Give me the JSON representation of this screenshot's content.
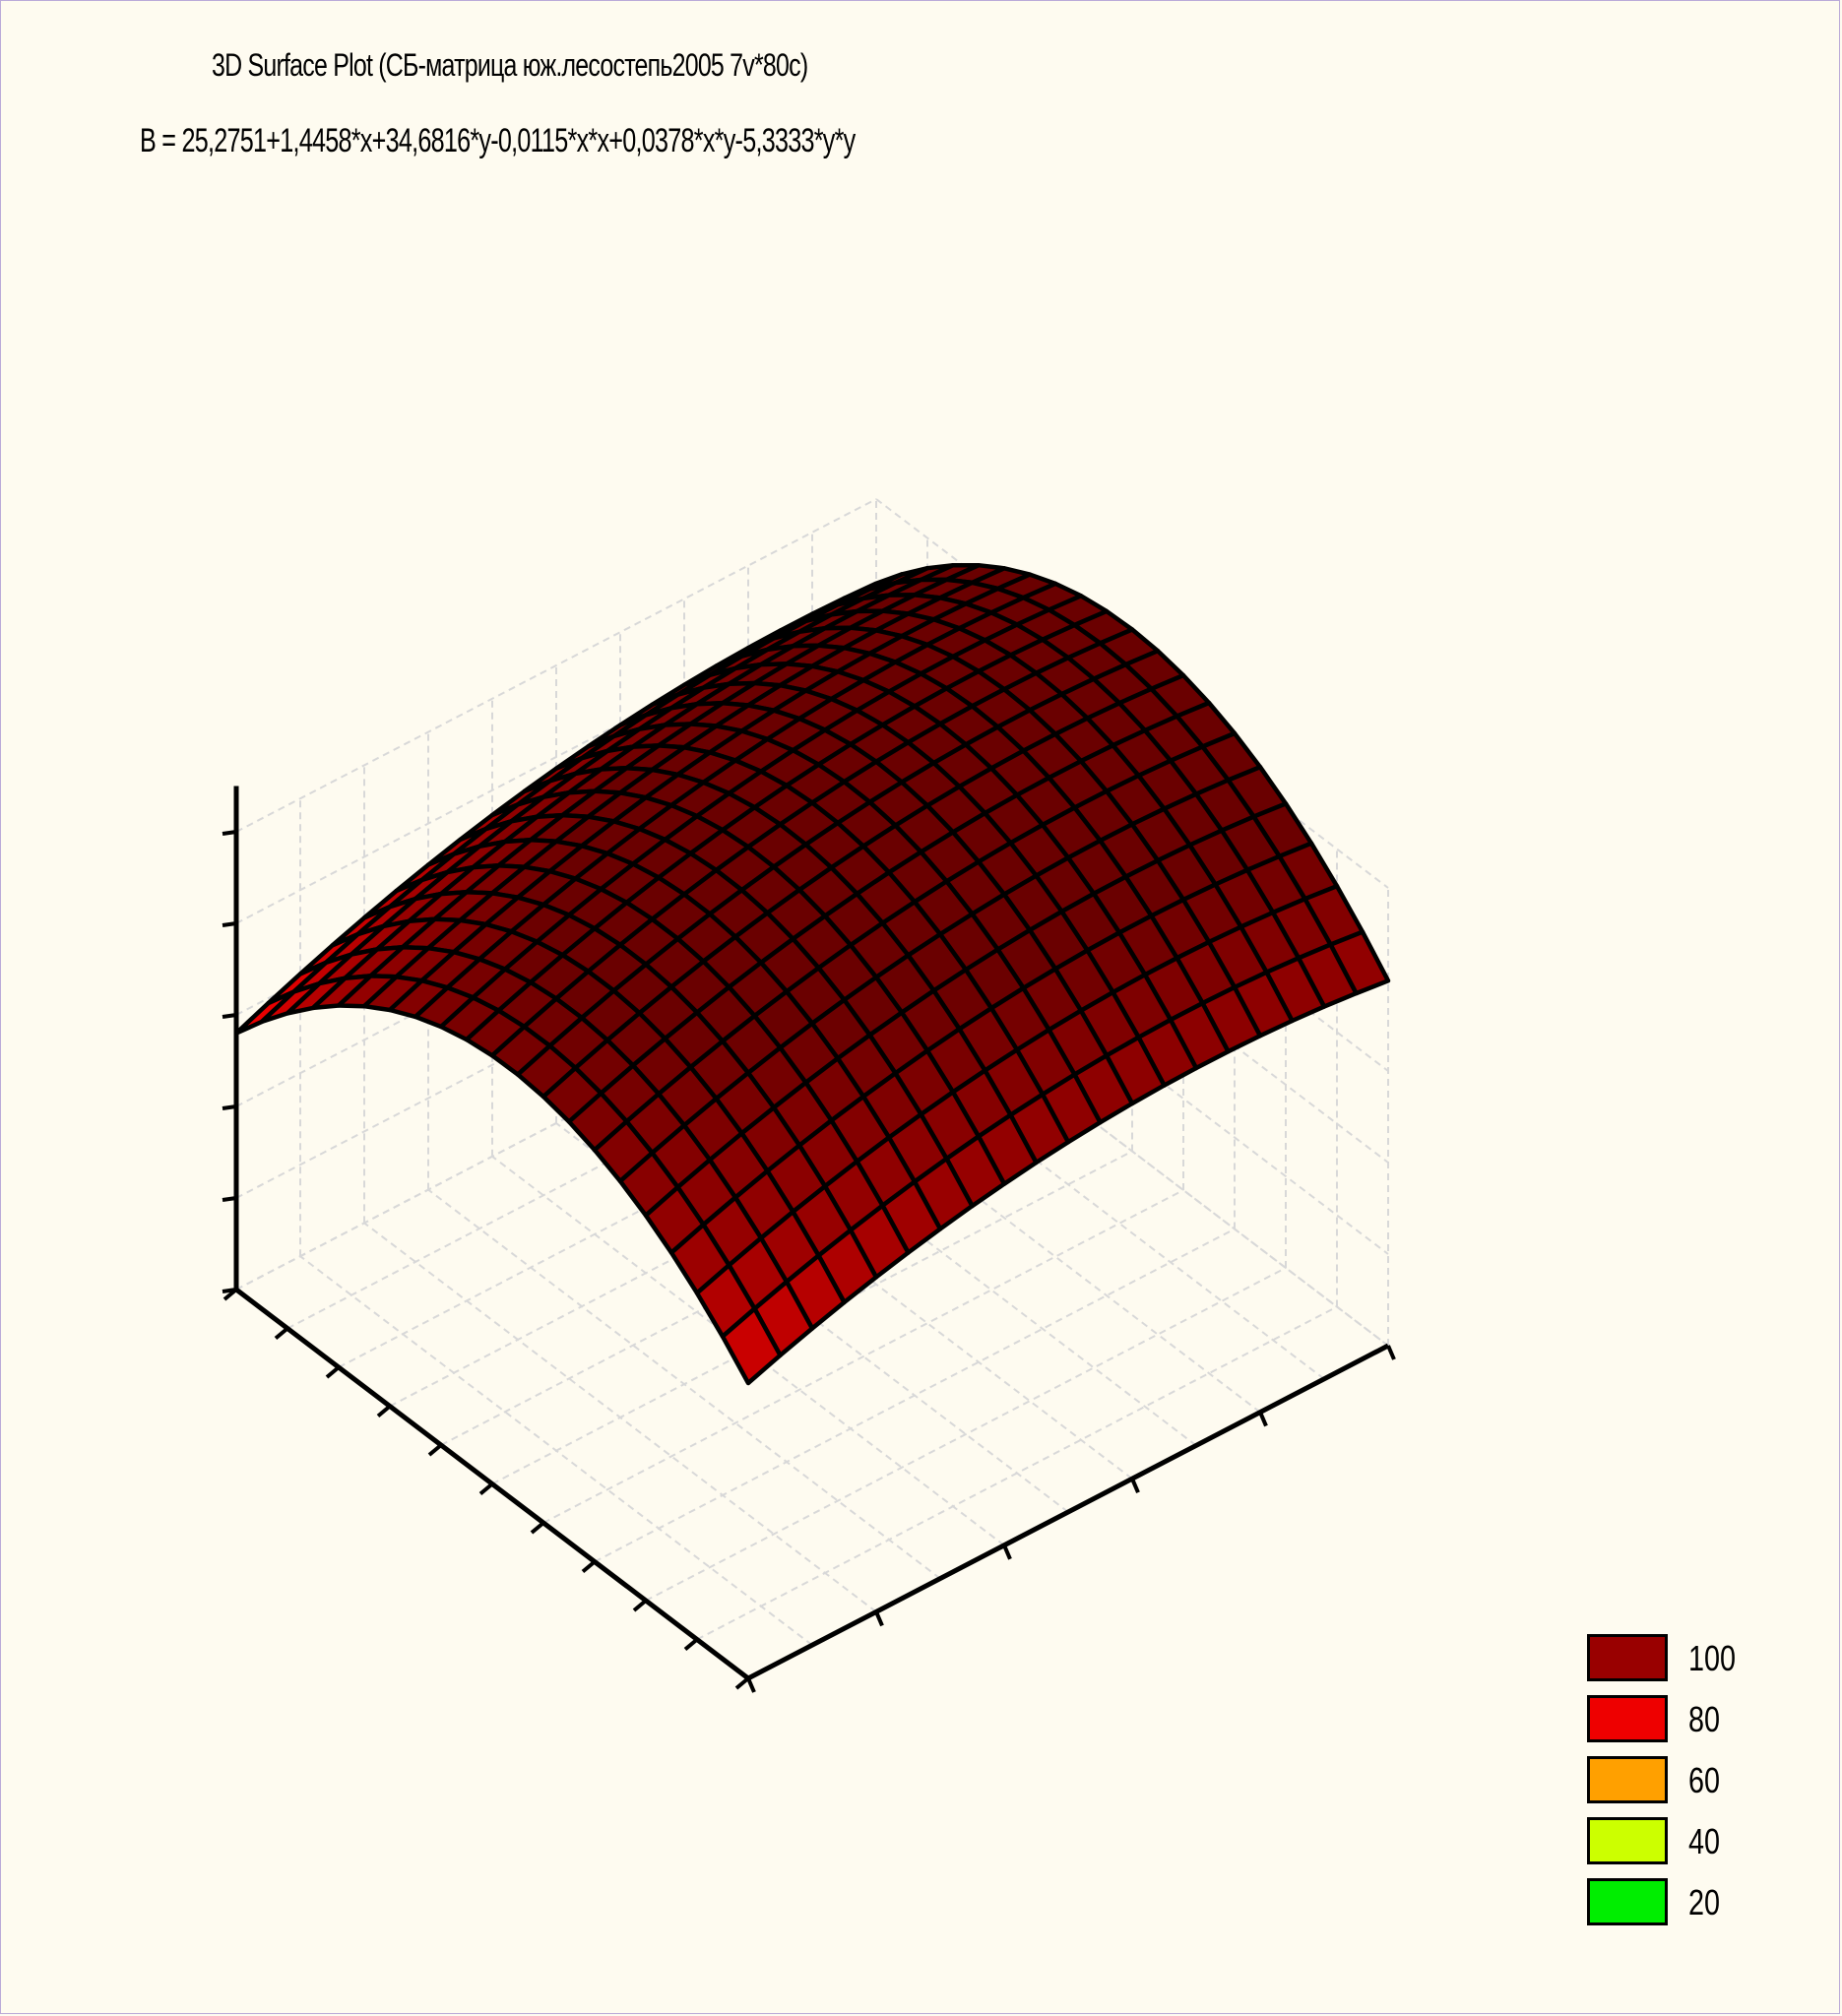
{
  "title": "3D Surface Plot (СБ-матрица юж.лесостепь2005 7v*80c)",
  "equation": "B    = 25,2751+1,4458*x+34,6816*y-0,0115*x*x+0,0378*x*y-5,3333*y*y",
  "chart_data": {
    "type": "surface3d",
    "formula": {
      "const": 25.2751,
      "x": 1.4458,
      "y": 34.6816,
      "xx": -0.0115,
      "xy": 0.0378,
      "yy": -5.3333
    },
    "x_range": [
      25,
      80
    ],
    "y_range": [
      1,
      6
    ],
    "grid": {
      "nx": 21,
      "ny": 21
    },
    "legend": {
      "placement": "bottom-right",
      "items": [
        {
          "label": "100",
          "color": "#990000"
        },
        {
          "label": "80",
          "color": "#ee0000"
        },
        {
          "label": "60",
          "color": "#ffa000"
        },
        {
          "label": "40",
          "color": "#ccff00"
        },
        {
          "label": "20",
          "color": "#00ee00"
        }
      ]
    },
    "palette": [
      {
        "v": 10,
        "color": "#00c000"
      },
      {
        "v": 20,
        "color": "#00ee00"
      },
      {
        "v": 40,
        "color": "#ccff00"
      },
      {
        "v": 60,
        "color": "#ffa000"
      },
      {
        "v": 80,
        "color": "#ee0000"
      },
      {
        "v": 100,
        "color": "#990000"
      },
      {
        "v": 120,
        "color": "#6a0000"
      }
    ]
  }
}
